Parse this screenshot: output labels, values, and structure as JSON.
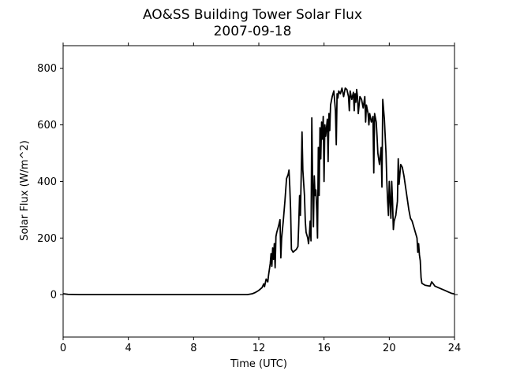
{
  "chart_data": {
    "type": "line",
    "title": "AO&SS Building Tower Solar Flux",
    "subtitle": "2007-09-18",
    "xlabel": "Time (UTC)",
    "ylabel": "Solar Flux (W/m^2)",
    "xlim": [
      0,
      24
    ],
    "ylim": [
      -150,
      880
    ],
    "xticks": [
      0,
      4,
      8,
      12,
      16,
      20,
      24
    ],
    "xtick_labels": [
      "0",
      "4",
      "8",
      "12",
      "16",
      "20",
      "24"
    ],
    "yticks": [
      0,
      200,
      400,
      600,
      800
    ],
    "ytick_labels": [
      "0",
      "200",
      "400",
      "600",
      "800"
    ],
    "grid": false,
    "legend": false,
    "series": [
      {
        "color": "#000000",
        "points": [
          [
            0.0,
            3
          ],
          [
            0.3,
            1
          ],
          [
            1.0,
            0
          ],
          [
            4.0,
            0
          ],
          [
            8.0,
            0
          ],
          [
            10.5,
            0
          ],
          [
            11.3,
            0
          ],
          [
            11.6,
            3
          ],
          [
            11.8,
            8
          ],
          [
            12.0,
            15
          ],
          [
            12.2,
            25
          ],
          [
            12.3,
            38
          ],
          [
            12.35,
            28
          ],
          [
            12.45,
            55
          ],
          [
            12.55,
            45
          ],
          [
            12.6,
            70
          ],
          [
            12.7,
            110
          ],
          [
            12.75,
            145
          ],
          [
            12.8,
            100
          ],
          [
            12.85,
            165
          ],
          [
            12.9,
            125
          ],
          [
            12.95,
            180
          ],
          [
            13.0,
            95
          ],
          [
            13.05,
            205
          ],
          [
            13.1,
            220
          ],
          [
            13.2,
            240
          ],
          [
            13.3,
            265
          ],
          [
            13.35,
            130
          ],
          [
            13.4,
            200
          ],
          [
            13.5,
            260
          ],
          [
            13.6,
            330
          ],
          [
            13.7,
            410
          ],
          [
            13.8,
            425
          ],
          [
            13.85,
            440
          ],
          [
            13.9,
            380
          ],
          [
            13.95,
            300
          ],
          [
            14.0,
            160
          ],
          [
            14.1,
            150
          ],
          [
            14.2,
            155
          ],
          [
            14.3,
            160
          ],
          [
            14.4,
            170
          ],
          [
            14.45,
            250
          ],
          [
            14.5,
            350
          ],
          [
            14.55,
            280
          ],
          [
            14.6,
            420
          ],
          [
            14.65,
            575
          ],
          [
            14.7,
            440
          ],
          [
            14.8,
            350
          ],
          [
            14.85,
            260
          ],
          [
            14.9,
            220
          ],
          [
            15.0,
            200
          ],
          [
            15.05,
            180
          ],
          [
            15.1,
            210
          ],
          [
            15.15,
            260
          ],
          [
            15.2,
            190
          ],
          [
            15.25,
            625
          ],
          [
            15.3,
            400
          ],
          [
            15.35,
            240
          ],
          [
            15.4,
            420
          ],
          [
            15.45,
            350
          ],
          [
            15.5,
            370
          ],
          [
            15.55,
            300
          ],
          [
            15.6,
            200
          ],
          [
            15.65,
            520
          ],
          [
            15.7,
            350
          ],
          [
            15.75,
            590
          ],
          [
            15.8,
            480
          ],
          [
            15.85,
            610
          ],
          [
            15.9,
            550
          ],
          [
            15.95,
            630
          ],
          [
            16.0,
            400
          ],
          [
            16.05,
            600
          ],
          [
            16.1,
            560
          ],
          [
            16.2,
            620
          ],
          [
            16.25,
            470
          ],
          [
            16.3,
            640
          ],
          [
            16.35,
            580
          ],
          [
            16.4,
            670
          ],
          [
            16.5,
            700
          ],
          [
            16.6,
            720
          ],
          [
            16.7,
            650
          ],
          [
            16.75,
            530
          ],
          [
            16.8,
            710
          ],
          [
            16.85,
            695
          ],
          [
            16.9,
            720
          ],
          [
            17.0,
            710
          ],
          [
            17.1,
            730
          ],
          [
            17.2,
            700
          ],
          [
            17.3,
            730
          ],
          [
            17.4,
            725
          ],
          [
            17.5,
            700
          ],
          [
            17.55,
            650
          ],
          [
            17.6,
            720
          ],
          [
            17.7,
            690
          ],
          [
            17.8,
            715
          ],
          [
            17.85,
            650
          ],
          [
            17.9,
            710
          ],
          [
            17.95,
            680
          ],
          [
            18.0,
            725
          ],
          [
            18.05,
            700
          ],
          [
            18.1,
            640
          ],
          [
            18.2,
            700
          ],
          [
            18.3,
            690
          ],
          [
            18.4,
            660
          ],
          [
            18.5,
            700
          ],
          [
            18.55,
            610
          ],
          [
            18.6,
            670
          ],
          [
            18.7,
            640
          ],
          [
            18.75,
            600
          ],
          [
            18.8,
            640
          ],
          [
            18.9,
            610
          ],
          [
            19.0,
            630
          ],
          [
            19.05,
            430
          ],
          [
            19.1,
            640
          ],
          [
            19.2,
            610
          ],
          [
            19.25,
            560
          ],
          [
            19.3,
            500
          ],
          [
            19.4,
            460
          ],
          [
            19.5,
            520
          ],
          [
            19.55,
            380
          ],
          [
            19.6,
            690
          ],
          [
            19.7,
            620
          ],
          [
            19.8,
            500
          ],
          [
            19.85,
            400
          ],
          [
            19.9,
            330
          ],
          [
            19.95,
            280
          ],
          [
            20.0,
            400
          ],
          [
            20.1,
            270
          ],
          [
            20.15,
            400
          ],
          [
            20.2,
            330
          ],
          [
            20.25,
            230
          ],
          [
            20.3,
            260
          ],
          [
            20.4,
            280
          ],
          [
            20.5,
            330
          ],
          [
            20.55,
            480
          ],
          [
            20.6,
            390
          ],
          [
            20.7,
            460
          ],
          [
            20.8,
            450
          ],
          [
            20.9,
            420
          ],
          [
            21.0,
            380
          ],
          [
            21.1,
            340
          ],
          [
            21.2,
            300
          ],
          [
            21.3,
            270
          ],
          [
            21.4,
            260
          ],
          [
            21.5,
            240
          ],
          [
            21.6,
            220
          ],
          [
            21.7,
            200
          ],
          [
            21.75,
            150
          ],
          [
            21.8,
            180
          ],
          [
            21.85,
            140
          ],
          [
            21.9,
            120
          ],
          [
            21.95,
            60
          ],
          [
            22.0,
            40
          ],
          [
            22.2,
            33
          ],
          [
            22.5,
            30
          ],
          [
            22.6,
            45
          ],
          [
            22.7,
            38
          ],
          [
            22.8,
            30
          ],
          [
            23.0,
            25
          ],
          [
            23.2,
            20
          ],
          [
            23.4,
            15
          ],
          [
            23.6,
            10
          ],
          [
            23.8,
            5
          ],
          [
            24.0,
            2
          ]
        ]
      }
    ]
  }
}
